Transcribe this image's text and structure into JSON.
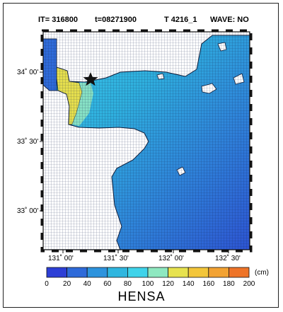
{
  "header": {
    "iteration": "IT=  316800",
    "time": "t=08271900",
    "case": "T 4216_1",
    "wave": "WAVE: NO"
  },
  "axes": {
    "lat_labels": [
      "34˚ 00'",
      "33˚ 30'",
      "33˚ 00'"
    ],
    "lon_labels": [
      "131˚ 00'",
      "131˚ 30'",
      "132˚ 00'",
      "132˚ 30'"
    ]
  },
  "legend": {
    "title": "HENSA",
    "unit": "(cm)",
    "ticks": [
      "0",
      "20",
      "40",
      "60",
      "80",
      "100",
      "120",
      "140",
      "160",
      "180",
      "200"
    ],
    "colors": [
      "#2d3fd6",
      "#2e6ad9",
      "#2d93dd",
      "#2fb6df",
      "#3fd3ea",
      "#8ee8c0",
      "#e7e24f",
      "#f3c63a",
      "#f2a233",
      "#ee7429"
    ]
  },
  "colors": {
    "land": "#ffffff",
    "border": "#111111",
    "marker": "#111111"
  }
}
